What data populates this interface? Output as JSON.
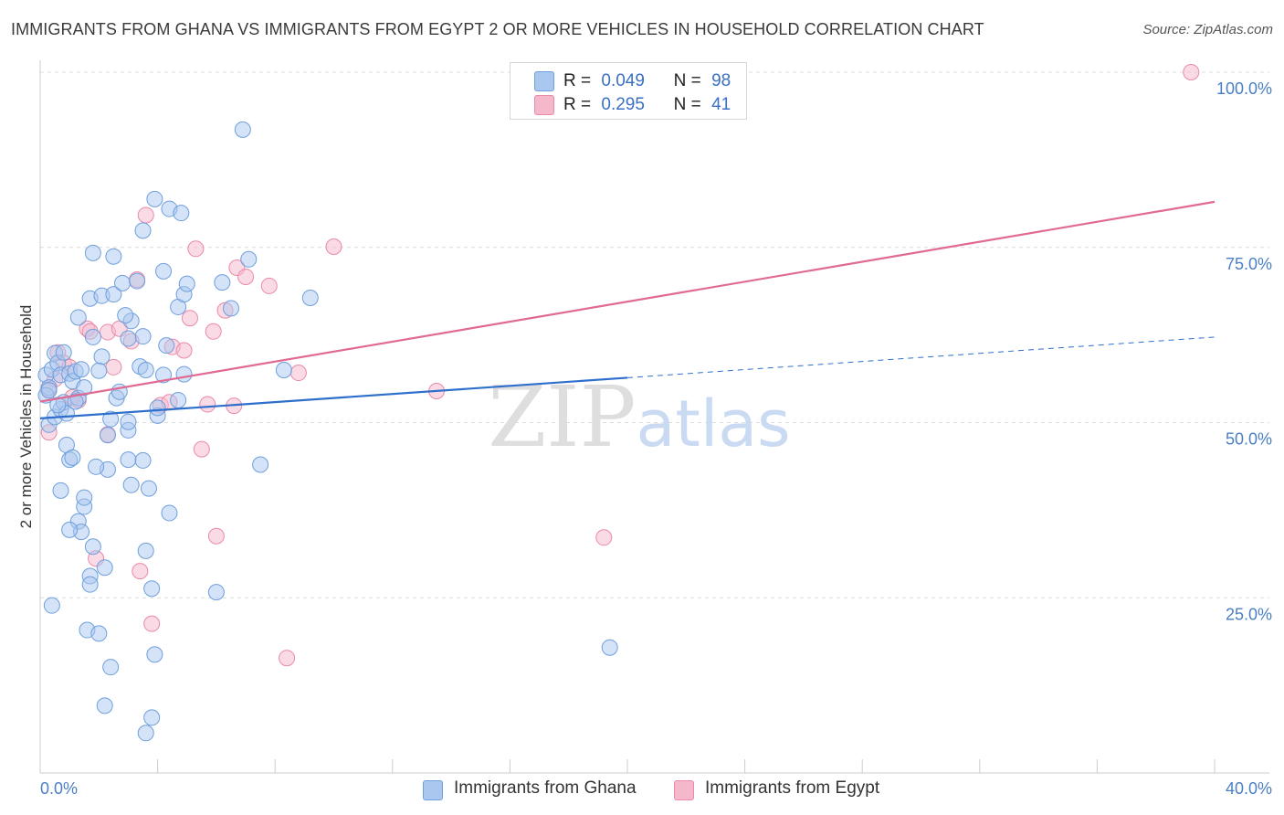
{
  "title": "IMMIGRANTS FROM GHANA VS IMMIGRANTS FROM EGYPT 2 OR MORE VEHICLES IN HOUSEHOLD CORRELATION CHART",
  "source": "Source: ZipAtlas.com",
  "watermark": "ZIPatlas",
  "legend": {
    "ghana": {
      "r_label": "R =",
      "r_value": "0.049",
      "n_label": "N =",
      "n_value": "98"
    },
    "egypt": {
      "r_label": "R =",
      "r_value": "0.295",
      "n_label": "N =",
      "n_value": "41"
    }
  },
  "colors": {
    "ghana_fill": "#aac8ef",
    "ghana_stroke": "#6f9fdc",
    "ghana_line": "#2f6fcc",
    "egypt_fill": "#f5b8cb",
    "egypt_stroke": "#e98aa8",
    "egypt_line": "#e06a93",
    "grid": "#dcdcdc",
    "tick_text": "#4a7fc4"
  },
  "chart_data": {
    "type": "scatter",
    "title": "IMMIGRANTS FROM GHANA VS IMMIGRANTS FROM EGYPT 2 OR MORE VEHICLES IN HOUSEHOLD CORRELATION CHART",
    "xlabel": "",
    "ylabel": "2 or more Vehicles in Household",
    "xlim": [
      0,
      40
    ],
    "ylim": [
      0,
      100
    ],
    "x_tick_labels": [
      "0.0%",
      "40.0%"
    ],
    "y_ticks": [
      25,
      50,
      75,
      100
    ],
    "y_tick_labels": [
      "25.0%",
      "50.0%",
      "75.0%",
      "100.0%"
    ],
    "grid": true,
    "legend_position": "top-center",
    "series": [
      {
        "name": "Immigrants from Ghana",
        "r": 0.049,
        "n": 98,
        "trend": {
          "x0": 0,
          "y0": 50.6,
          "x1": 20,
          "y1": 56.4,
          "dashed_to_x": 40,
          "dashed_to_y": 62.2
        },
        "points": [
          [
            0.2,
            56.8
          ],
          [
            0.3,
            55.0
          ],
          [
            0.5,
            59.9
          ],
          [
            0.4,
            57.6
          ],
          [
            0.6,
            58.5
          ],
          [
            0.2,
            53.9
          ],
          [
            0.3,
            49.7
          ],
          [
            0.5,
            50.8
          ],
          [
            0.7,
            51.9
          ],
          [
            0.8,
            52.9
          ],
          [
            0.9,
            51.3
          ],
          [
            0.7,
            56.8
          ],
          [
            1.0,
            57.0
          ],
          [
            1.1,
            55.9
          ],
          [
            1.3,
            53.5
          ],
          [
            1.2,
            57.3
          ],
          [
            1.4,
            57.6
          ],
          [
            0.9,
            46.8
          ],
          [
            1.0,
            44.7
          ],
          [
            1.1,
            45.0
          ],
          [
            0.7,
            40.3
          ],
          [
            1.5,
            38.0
          ],
          [
            1.5,
            39.3
          ],
          [
            1.3,
            35.9
          ],
          [
            1.4,
            34.4
          ],
          [
            1.0,
            34.7
          ],
          [
            1.8,
            32.3
          ],
          [
            1.7,
            28.1
          ],
          [
            1.7,
            26.9
          ],
          [
            2.2,
            29.3
          ],
          [
            0.4,
            23.9
          ],
          [
            1.6,
            20.4
          ],
          [
            2.0,
            19.9
          ],
          [
            2.4,
            15.1
          ],
          [
            2.2,
            9.6
          ],
          [
            1.8,
            74.2
          ],
          [
            2.5,
            73.7
          ],
          [
            1.7,
            67.7
          ],
          [
            2.1,
            68.1
          ],
          [
            2.5,
            68.3
          ],
          [
            2.8,
            69.9
          ],
          [
            3.3,
            70.2
          ],
          [
            3.1,
            64.5
          ],
          [
            2.9,
            65.3
          ],
          [
            3.5,
            62.3
          ],
          [
            1.3,
            65.0
          ],
          [
            1.8,
            62.2
          ],
          [
            2.1,
            59.4
          ],
          [
            2.0,
            57.4
          ],
          [
            3.4,
            58.0
          ],
          [
            3.6,
            57.5
          ],
          [
            4.2,
            56.8
          ],
          [
            4.3,
            61.0
          ],
          [
            2.6,
            53.5
          ],
          [
            2.7,
            54.4
          ],
          [
            3.0,
            48.9
          ],
          [
            3.0,
            50.1
          ],
          [
            2.3,
            48.2
          ],
          [
            2.3,
            43.3
          ],
          [
            1.9,
            43.7
          ],
          [
            3.0,
            44.7
          ],
          [
            3.5,
            44.6
          ],
          [
            3.1,
            41.1
          ],
          [
            3.7,
            40.6
          ],
          [
            3.6,
            31.7
          ],
          [
            3.8,
            26.3
          ],
          [
            3.9,
            16.9
          ],
          [
            3.8,
            7.9
          ],
          [
            3.6,
            5.7
          ],
          [
            4.4,
            37.1
          ],
          [
            4.7,
            53.2
          ],
          [
            4.9,
            56.9
          ],
          [
            4.0,
            51.0
          ],
          [
            4.0,
            52.1
          ],
          [
            4.7,
            66.5
          ],
          [
            4.9,
            68.3
          ],
          [
            5.0,
            69.8
          ],
          [
            6.2,
            70.0
          ],
          [
            4.2,
            71.6
          ],
          [
            3.5,
            77.4
          ],
          [
            3.9,
            81.9
          ],
          [
            4.4,
            80.5
          ],
          [
            4.8,
            79.9
          ],
          [
            6.5,
            66.3
          ],
          [
            7.1,
            73.3
          ],
          [
            8.3,
            57.5
          ],
          [
            9.2,
            67.8
          ],
          [
            7.5,
            44.0
          ],
          [
            6.0,
            25.8
          ],
          [
            6.9,
            91.8
          ],
          [
            19.4,
            17.9
          ],
          [
            0.3,
            54.6
          ],
          [
            0.6,
            52.5
          ],
          [
            1.2,
            53.0
          ],
          [
            0.8,
            60.0
          ],
          [
            2.4,
            50.5
          ],
          [
            1.5,
            55.0
          ],
          [
            3.0,
            62.0
          ]
        ]
      },
      {
        "name": "Immigrants from Egypt",
        "r": 0.295,
        "n": 41,
        "trend": {
          "x0": 0,
          "y0": 53.0,
          "x1": 40,
          "y1": 81.5
        },
        "points": [
          [
            0.3,
            48.6
          ],
          [
            0.3,
            54.8
          ],
          [
            0.5,
            56.2
          ],
          [
            0.6,
            60.0
          ],
          [
            0.8,
            58.5
          ],
          [
            1.0,
            57.9
          ],
          [
            1.1,
            53.6
          ],
          [
            1.3,
            53.2
          ],
          [
            1.6,
            63.4
          ],
          [
            1.7,
            63.0
          ],
          [
            2.3,
            62.9
          ],
          [
            2.7,
            63.4
          ],
          [
            3.1,
            61.6
          ],
          [
            2.5,
            57.9
          ],
          [
            2.3,
            48.3
          ],
          [
            1.9,
            30.6
          ],
          [
            3.4,
            28.8
          ],
          [
            3.8,
            21.3
          ],
          [
            3.3,
            70.4
          ],
          [
            3.6,
            79.6
          ],
          [
            4.1,
            52.5
          ],
          [
            4.4,
            52.9
          ],
          [
            4.5,
            60.8
          ],
          [
            4.9,
            60.3
          ],
          [
            5.1,
            64.9
          ],
          [
            5.3,
            74.8
          ],
          [
            5.7,
            52.6
          ],
          [
            5.9,
            63.0
          ],
          [
            6.3,
            66.0
          ],
          [
            6.7,
            72.1
          ],
          [
            7.0,
            70.8
          ],
          [
            6.6,
            52.4
          ],
          [
            7.8,
            69.5
          ],
          [
            8.8,
            57.1
          ],
          [
            10.0,
            75.1
          ],
          [
            5.5,
            46.2
          ],
          [
            6.0,
            33.8
          ],
          [
            8.4,
            16.4
          ],
          [
            13.5,
            54.5
          ],
          [
            19.2,
            33.6
          ],
          [
            39.2,
            100.0
          ]
        ]
      }
    ]
  },
  "bottom_legend": {
    "ghana_label": "Immigrants from Ghana",
    "egypt_label": "Immigrants from Egypt"
  }
}
